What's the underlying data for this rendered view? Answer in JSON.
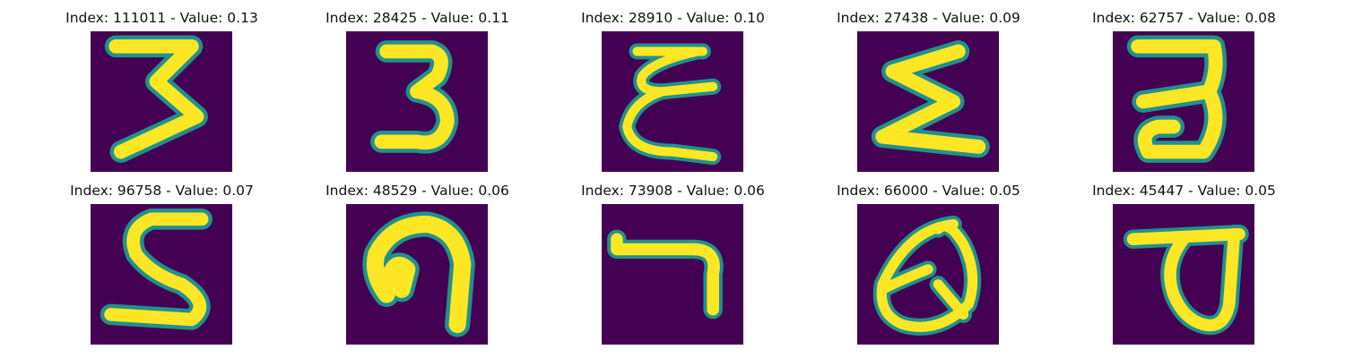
{
  "figure": {
    "background_color": "#ffffff",
    "image_background_color": "#440154",
    "stroke_color": "#fde725",
    "edge_color": "#21918c",
    "panels": [
      {
        "title": "Index: 111011 - Value: 0.13",
        "index": 111011,
        "value": 0.13
      },
      {
        "title": "Index: 28425 - Value: 0.11",
        "index": 28425,
        "value": 0.11
      },
      {
        "title": "Index: 28910 - Value: 0.10",
        "index": 28910,
        "value": 0.1
      },
      {
        "title": "Index: 27438 - Value: 0.09",
        "index": 27438,
        "value": 0.09
      },
      {
        "title": "Index: 62757 - Value: 0.08",
        "index": 62757,
        "value": 0.08
      },
      {
        "title": "Index: 96758 - Value: 0.07",
        "index": 96758,
        "value": 0.07
      },
      {
        "title": "Index: 48529 - Value: 0.06",
        "index": 48529,
        "value": 0.06
      },
      {
        "title": "Index: 73908 - Value: 0.06",
        "index": 73908,
        "value": 0.06
      },
      {
        "title": "Index: 66000 - Value: 0.05",
        "index": 66000,
        "value": 0.05
      },
      {
        "title": "Index: 45447 - Value: 0.05",
        "index": 45447,
        "value": 0.05
      }
    ]
  }
}
